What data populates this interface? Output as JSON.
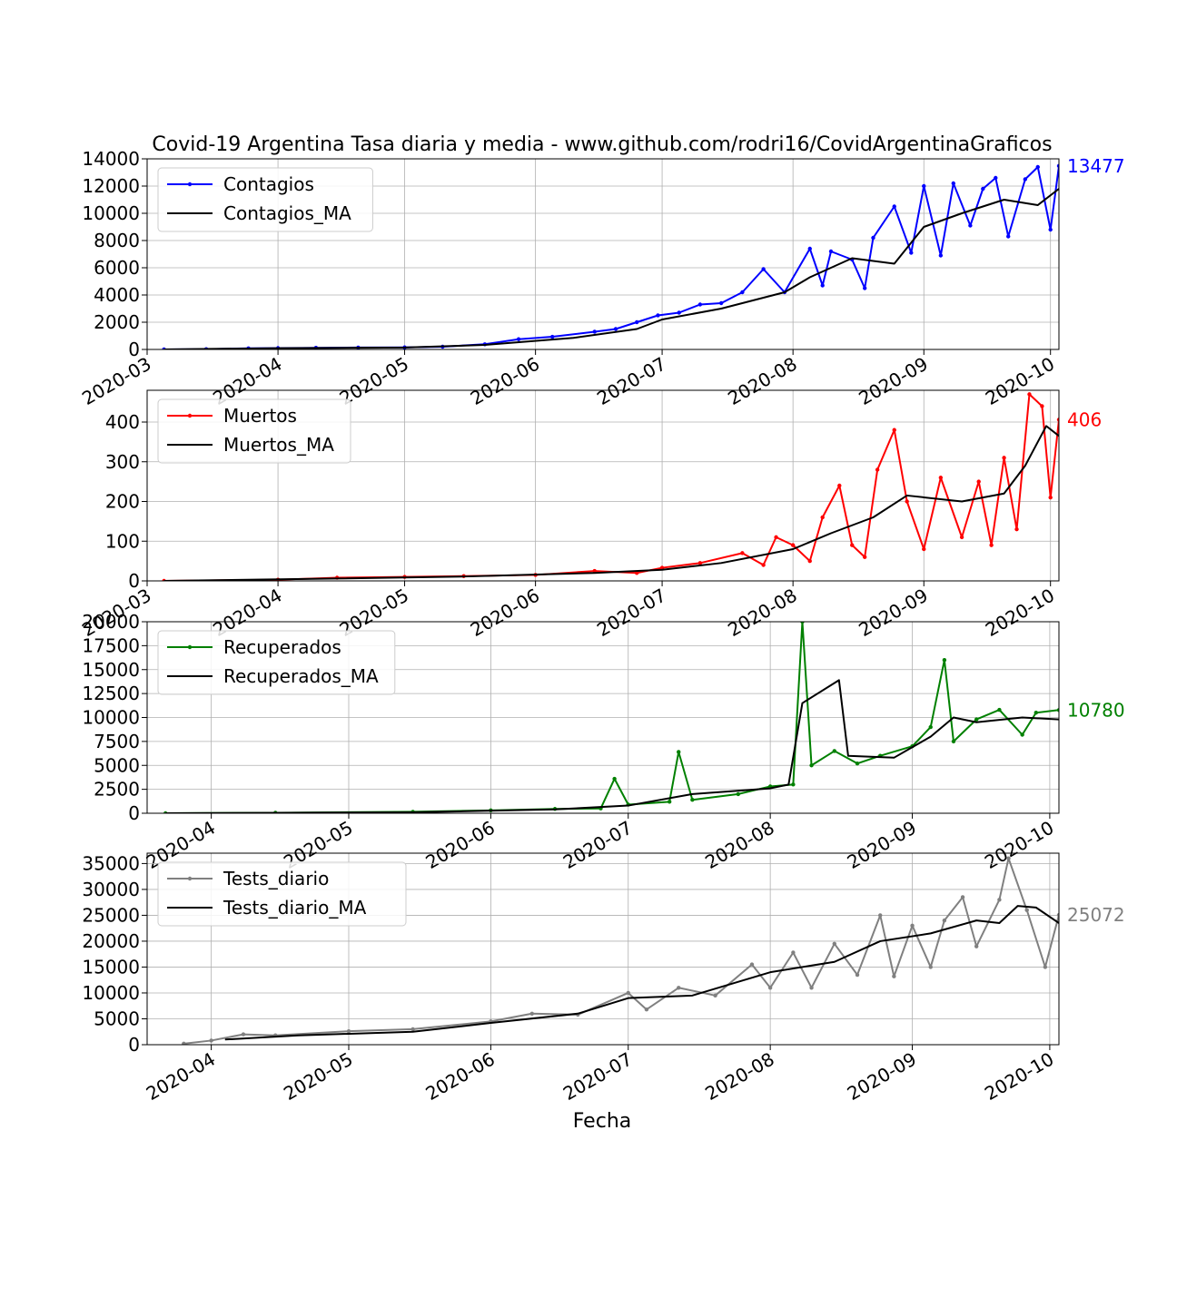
{
  "title": "Covid-19 Argentina Tasa diaria y media - www.github.com/rodri16/CovidArgentinaGraficos",
  "xlabel": "Fecha",
  "colors": {
    "grid": "#b0b0b0",
    "axis": "#000000",
    "ma": "#000000"
  },
  "chart_data": [
    {
      "type": "line",
      "ylim": [
        0,
        14000
      ],
      "yticks": [
        0,
        2000,
        4000,
        6000,
        8000,
        10000,
        12000,
        14000
      ],
      "xlim": [
        "2020-03-01",
        "2020-10-03"
      ],
      "xticks": [
        "2020-03",
        "2020-04",
        "2020-05",
        "2020-06",
        "2020-07",
        "2020-08",
        "2020-09",
        "2020-10"
      ],
      "grid": true,
      "legend_position": "upper-left",
      "last_value_label": "13477",
      "series": [
        {
          "name": "Contagios",
          "color": "#0000ff",
          "marker": true,
          "points": [
            [
              "2020-03-05",
              2
            ],
            [
              "2020-03-15",
              20
            ],
            [
              "2020-03-25",
              80
            ],
            [
              "2020-04-01",
              100
            ],
            [
              "2020-04-10",
              120
            ],
            [
              "2020-04-20",
              140
            ],
            [
              "2020-05-01",
              150
            ],
            [
              "2020-05-10",
              200
            ],
            [
              "2020-05-20",
              380
            ],
            [
              "2020-05-28",
              750
            ],
            [
              "2020-06-05",
              930
            ],
            [
              "2020-06-15",
              1300
            ],
            [
              "2020-06-20",
              1500
            ],
            [
              "2020-06-25",
              2000
            ],
            [
              "2020-06-30",
              2500
            ],
            [
              "2020-07-05",
              2700
            ],
            [
              "2020-07-10",
              3300
            ],
            [
              "2020-07-15",
              3400
            ],
            [
              "2020-07-20",
              4200
            ],
            [
              "2020-07-25",
              5900
            ],
            [
              "2020-07-30",
              4200
            ],
            [
              "2020-08-05",
              7400
            ],
            [
              "2020-08-08",
              4700
            ],
            [
              "2020-08-10",
              7200
            ],
            [
              "2020-08-15",
              6600
            ],
            [
              "2020-08-18",
              4500
            ],
            [
              "2020-08-20",
              8200
            ],
            [
              "2020-08-25",
              10500
            ],
            [
              "2020-08-29",
              7100
            ],
            [
              "2020-09-01",
              12000
            ],
            [
              "2020-09-05",
              6900
            ],
            [
              "2020-09-08",
              12200
            ],
            [
              "2020-09-12",
              9100
            ],
            [
              "2020-09-15",
              11800
            ],
            [
              "2020-09-18",
              12600
            ],
            [
              "2020-09-21",
              8300
            ],
            [
              "2020-09-25",
              12500
            ],
            [
              "2020-09-28",
              13400
            ],
            [
              "2020-10-01",
              8800
            ],
            [
              "2020-10-03",
              13477
            ]
          ]
        },
        {
          "name": "Contagios_MA",
          "color": "#000000",
          "marker": false,
          "points": [
            [
              "2020-03-05",
              2
            ],
            [
              "2020-04-01",
              90
            ],
            [
              "2020-05-01",
              140
            ],
            [
              "2020-05-20",
              330
            ],
            [
              "2020-06-10",
              850
            ],
            [
              "2020-06-25",
              1500
            ],
            [
              "2020-07-01",
              2200
            ],
            [
              "2020-07-15",
              3000
            ],
            [
              "2020-07-30",
              4200
            ],
            [
              "2020-08-05",
              5300
            ],
            [
              "2020-08-15",
              6700
            ],
            [
              "2020-08-25",
              6300
            ],
            [
              "2020-09-01",
              9000
            ],
            [
              "2020-09-10",
              10000
            ],
            [
              "2020-09-20",
              11000
            ],
            [
              "2020-09-28",
              10600
            ],
            [
              "2020-10-03",
              11800
            ]
          ]
        }
      ]
    },
    {
      "type": "line",
      "ylim": [
        0,
        480
      ],
      "yticks": [
        0,
        100,
        200,
        300,
        400
      ],
      "xlim": [
        "2020-03-01",
        "2020-10-03"
      ],
      "xticks": [
        "2020-03",
        "2020-04",
        "2020-05",
        "2020-06",
        "2020-07",
        "2020-08",
        "2020-09",
        "2020-10"
      ],
      "grid": true,
      "legend_position": "upper-left",
      "last_value_label": "406",
      "series": [
        {
          "name": "Muertos",
          "color": "#ff0000",
          "marker": true,
          "points": [
            [
              "2020-03-05",
              0
            ],
            [
              "2020-04-01",
              3
            ],
            [
              "2020-04-15",
              8
            ],
            [
              "2020-05-01",
              10
            ],
            [
              "2020-05-15",
              12
            ],
            [
              "2020-06-01",
              15
            ],
            [
              "2020-06-15",
              25
            ],
            [
              "2020-06-25",
              20
            ],
            [
              "2020-07-01",
              33
            ],
            [
              "2020-07-10",
              45
            ],
            [
              "2020-07-20",
              70
            ],
            [
              "2020-07-25",
              40
            ],
            [
              "2020-07-28",
              110
            ],
            [
              "2020-08-01",
              90
            ],
            [
              "2020-08-05",
              50
            ],
            [
              "2020-08-08",
              160
            ],
            [
              "2020-08-12",
              240
            ],
            [
              "2020-08-15",
              90
            ],
            [
              "2020-08-18",
              60
            ],
            [
              "2020-08-21",
              280
            ],
            [
              "2020-08-25",
              380
            ],
            [
              "2020-08-28",
              200
            ],
            [
              "2020-09-01",
              80
            ],
            [
              "2020-09-05",
              260
            ],
            [
              "2020-09-10",
              110
            ],
            [
              "2020-09-14",
              250
            ],
            [
              "2020-09-17",
              90
            ],
            [
              "2020-09-20",
              310
            ],
            [
              "2020-09-23",
              130
            ],
            [
              "2020-09-26",
              470
            ],
            [
              "2020-09-29",
              440
            ],
            [
              "2020-10-01",
              210
            ],
            [
              "2020-10-03",
              406
            ]
          ]
        },
        {
          "name": "Muertos_MA",
          "color": "#000000",
          "marker": false,
          "points": [
            [
              "2020-03-05",
              0
            ],
            [
              "2020-04-15",
              6
            ],
            [
              "2020-05-15",
              11
            ],
            [
              "2020-06-15",
              20
            ],
            [
              "2020-07-01",
              28
            ],
            [
              "2020-07-15",
              45
            ],
            [
              "2020-08-01",
              80
            ],
            [
              "2020-08-10",
              120
            ],
            [
              "2020-08-20",
              160
            ],
            [
              "2020-08-28",
              215
            ],
            [
              "2020-09-10",
              200
            ],
            [
              "2020-09-20",
              220
            ],
            [
              "2020-09-25",
              290
            ],
            [
              "2020-09-30",
              390
            ],
            [
              "2020-10-03",
              365
            ]
          ]
        }
      ]
    },
    {
      "type": "line",
      "ylim": [
        0,
        20000
      ],
      "yticks": [
        0,
        2500,
        5000,
        7500,
        10000,
        12500,
        15000,
        17500,
        20000
      ],
      "xlim": [
        "2020-03-18",
        "2020-10-03"
      ],
      "xticks": [
        "2020-04",
        "2020-05",
        "2020-06",
        "2020-07",
        "2020-08",
        "2020-09",
        "2020-10"
      ],
      "grid": true,
      "legend_position": "upper-left",
      "last_value_label": "10780",
      "series": [
        {
          "name": "Recuperados",
          "color": "#008000",
          "marker": true,
          "points": [
            [
              "2020-03-22",
              0
            ],
            [
              "2020-04-15",
              50
            ],
            [
              "2020-05-15",
              150
            ],
            [
              "2020-06-01",
              300
            ],
            [
              "2020-06-15",
              450
            ],
            [
              "2020-06-25",
              500
            ],
            [
              "2020-06-28",
              3600
            ],
            [
              "2020-07-01",
              900
            ],
            [
              "2020-07-10",
              1200
            ],
            [
              "2020-07-12",
              6400
            ],
            [
              "2020-07-15",
              1400
            ],
            [
              "2020-07-25",
              2000
            ],
            [
              "2020-08-01",
              2800
            ],
            [
              "2020-08-06",
              3000
            ],
            [
              "2020-08-08",
              20000
            ],
            [
              "2020-08-10",
              5000
            ],
            [
              "2020-08-15",
              6500
            ],
            [
              "2020-08-20",
              5200
            ],
            [
              "2020-08-25",
              6000
            ],
            [
              "2020-09-01",
              7000
            ],
            [
              "2020-09-05",
              9000
            ],
            [
              "2020-09-08",
              16000
            ],
            [
              "2020-09-10",
              7500
            ],
            [
              "2020-09-15",
              9800
            ],
            [
              "2020-09-20",
              10800
            ],
            [
              "2020-09-25",
              8200
            ],
            [
              "2020-09-28",
              10500
            ],
            [
              "2020-10-03",
              10780
            ]
          ]
        },
        {
          "name": "Recuperados_MA",
          "color": "#000000",
          "marker": false,
          "points": [
            [
              "2020-03-22",
              0
            ],
            [
              "2020-05-15",
              100
            ],
            [
              "2020-06-15",
              400
            ],
            [
              "2020-07-01",
              800
            ],
            [
              "2020-07-15",
              2000
            ],
            [
              "2020-08-01",
              2600
            ],
            [
              "2020-08-05",
              3000
            ],
            [
              "2020-08-08",
              11500
            ],
            [
              "2020-08-16",
              13900
            ],
            [
              "2020-08-18",
              6000
            ],
            [
              "2020-08-28",
              5800
            ],
            [
              "2020-09-05",
              8000
            ],
            [
              "2020-09-10",
              10000
            ],
            [
              "2020-09-15",
              9500
            ],
            [
              "2020-09-25",
              10000
            ],
            [
              "2020-10-03",
              9800
            ]
          ]
        }
      ]
    },
    {
      "type": "line",
      "ylim": [
        0,
        37000
      ],
      "yticks": [
        0,
        5000,
        10000,
        15000,
        20000,
        25000,
        30000,
        35000
      ],
      "xlim": [
        "2020-03-18",
        "2020-10-03"
      ],
      "xticks": [
        "2020-04",
        "2020-05",
        "2020-06",
        "2020-07",
        "2020-08",
        "2020-09",
        "2020-10"
      ],
      "grid": true,
      "legend_position": "upper-left",
      "last_value_label": "25072",
      "series": [
        {
          "name": "Tests_diario",
          "color": "#808080",
          "marker": true,
          "points": [
            [
              "2020-03-26",
              200
            ],
            [
              "2020-04-01",
              800
            ],
            [
              "2020-04-08",
              2000
            ],
            [
              "2020-04-15",
              1800
            ],
            [
              "2020-05-01",
              2600
            ],
            [
              "2020-05-15",
              3000
            ],
            [
              "2020-06-01",
              4500
            ],
            [
              "2020-06-10",
              6000
            ],
            [
              "2020-06-20",
              5800
            ],
            [
              "2020-07-01",
              10000
            ],
            [
              "2020-07-05",
              6800
            ],
            [
              "2020-07-12",
              11000
            ],
            [
              "2020-07-20",
              9500
            ],
            [
              "2020-07-28",
              15500
            ],
            [
              "2020-08-01",
              11000
            ],
            [
              "2020-08-06",
              17800
            ],
            [
              "2020-08-10",
              11000
            ],
            [
              "2020-08-15",
              19500
            ],
            [
              "2020-08-20",
              13500
            ],
            [
              "2020-08-25",
              25000
            ],
            [
              "2020-08-28",
              13200
            ],
            [
              "2020-09-01",
              23000
            ],
            [
              "2020-09-05",
              15000
            ],
            [
              "2020-09-08",
              24000
            ],
            [
              "2020-09-12",
              28500
            ],
            [
              "2020-09-15",
              19000
            ],
            [
              "2020-09-20",
              28000
            ],
            [
              "2020-09-22",
              36000
            ],
            [
              "2020-09-26",
              26000
            ],
            [
              "2020-09-30",
              15000
            ],
            [
              "2020-10-03",
              25072
            ]
          ]
        },
        {
          "name": "Tests_diario_MA",
          "color": "#000000",
          "marker": false,
          "points": [
            [
              "2020-04-04",
              1000
            ],
            [
              "2020-04-20",
              1800
            ],
            [
              "2020-05-15",
              2500
            ],
            [
              "2020-06-01",
              4200
            ],
            [
              "2020-06-20",
              6000
            ],
            [
              "2020-07-01",
              9000
            ],
            [
              "2020-07-15",
              9500
            ],
            [
              "2020-08-01",
              14000
            ],
            [
              "2020-08-15",
              16000
            ],
            [
              "2020-08-25",
              20000
            ],
            [
              "2020-09-05",
              21500
            ],
            [
              "2020-09-15",
              24000
            ],
            [
              "2020-09-20",
              23500
            ],
            [
              "2020-09-24",
              26800
            ],
            [
              "2020-09-28",
              26500
            ],
            [
              "2020-10-03",
              23500
            ]
          ]
        }
      ]
    }
  ]
}
